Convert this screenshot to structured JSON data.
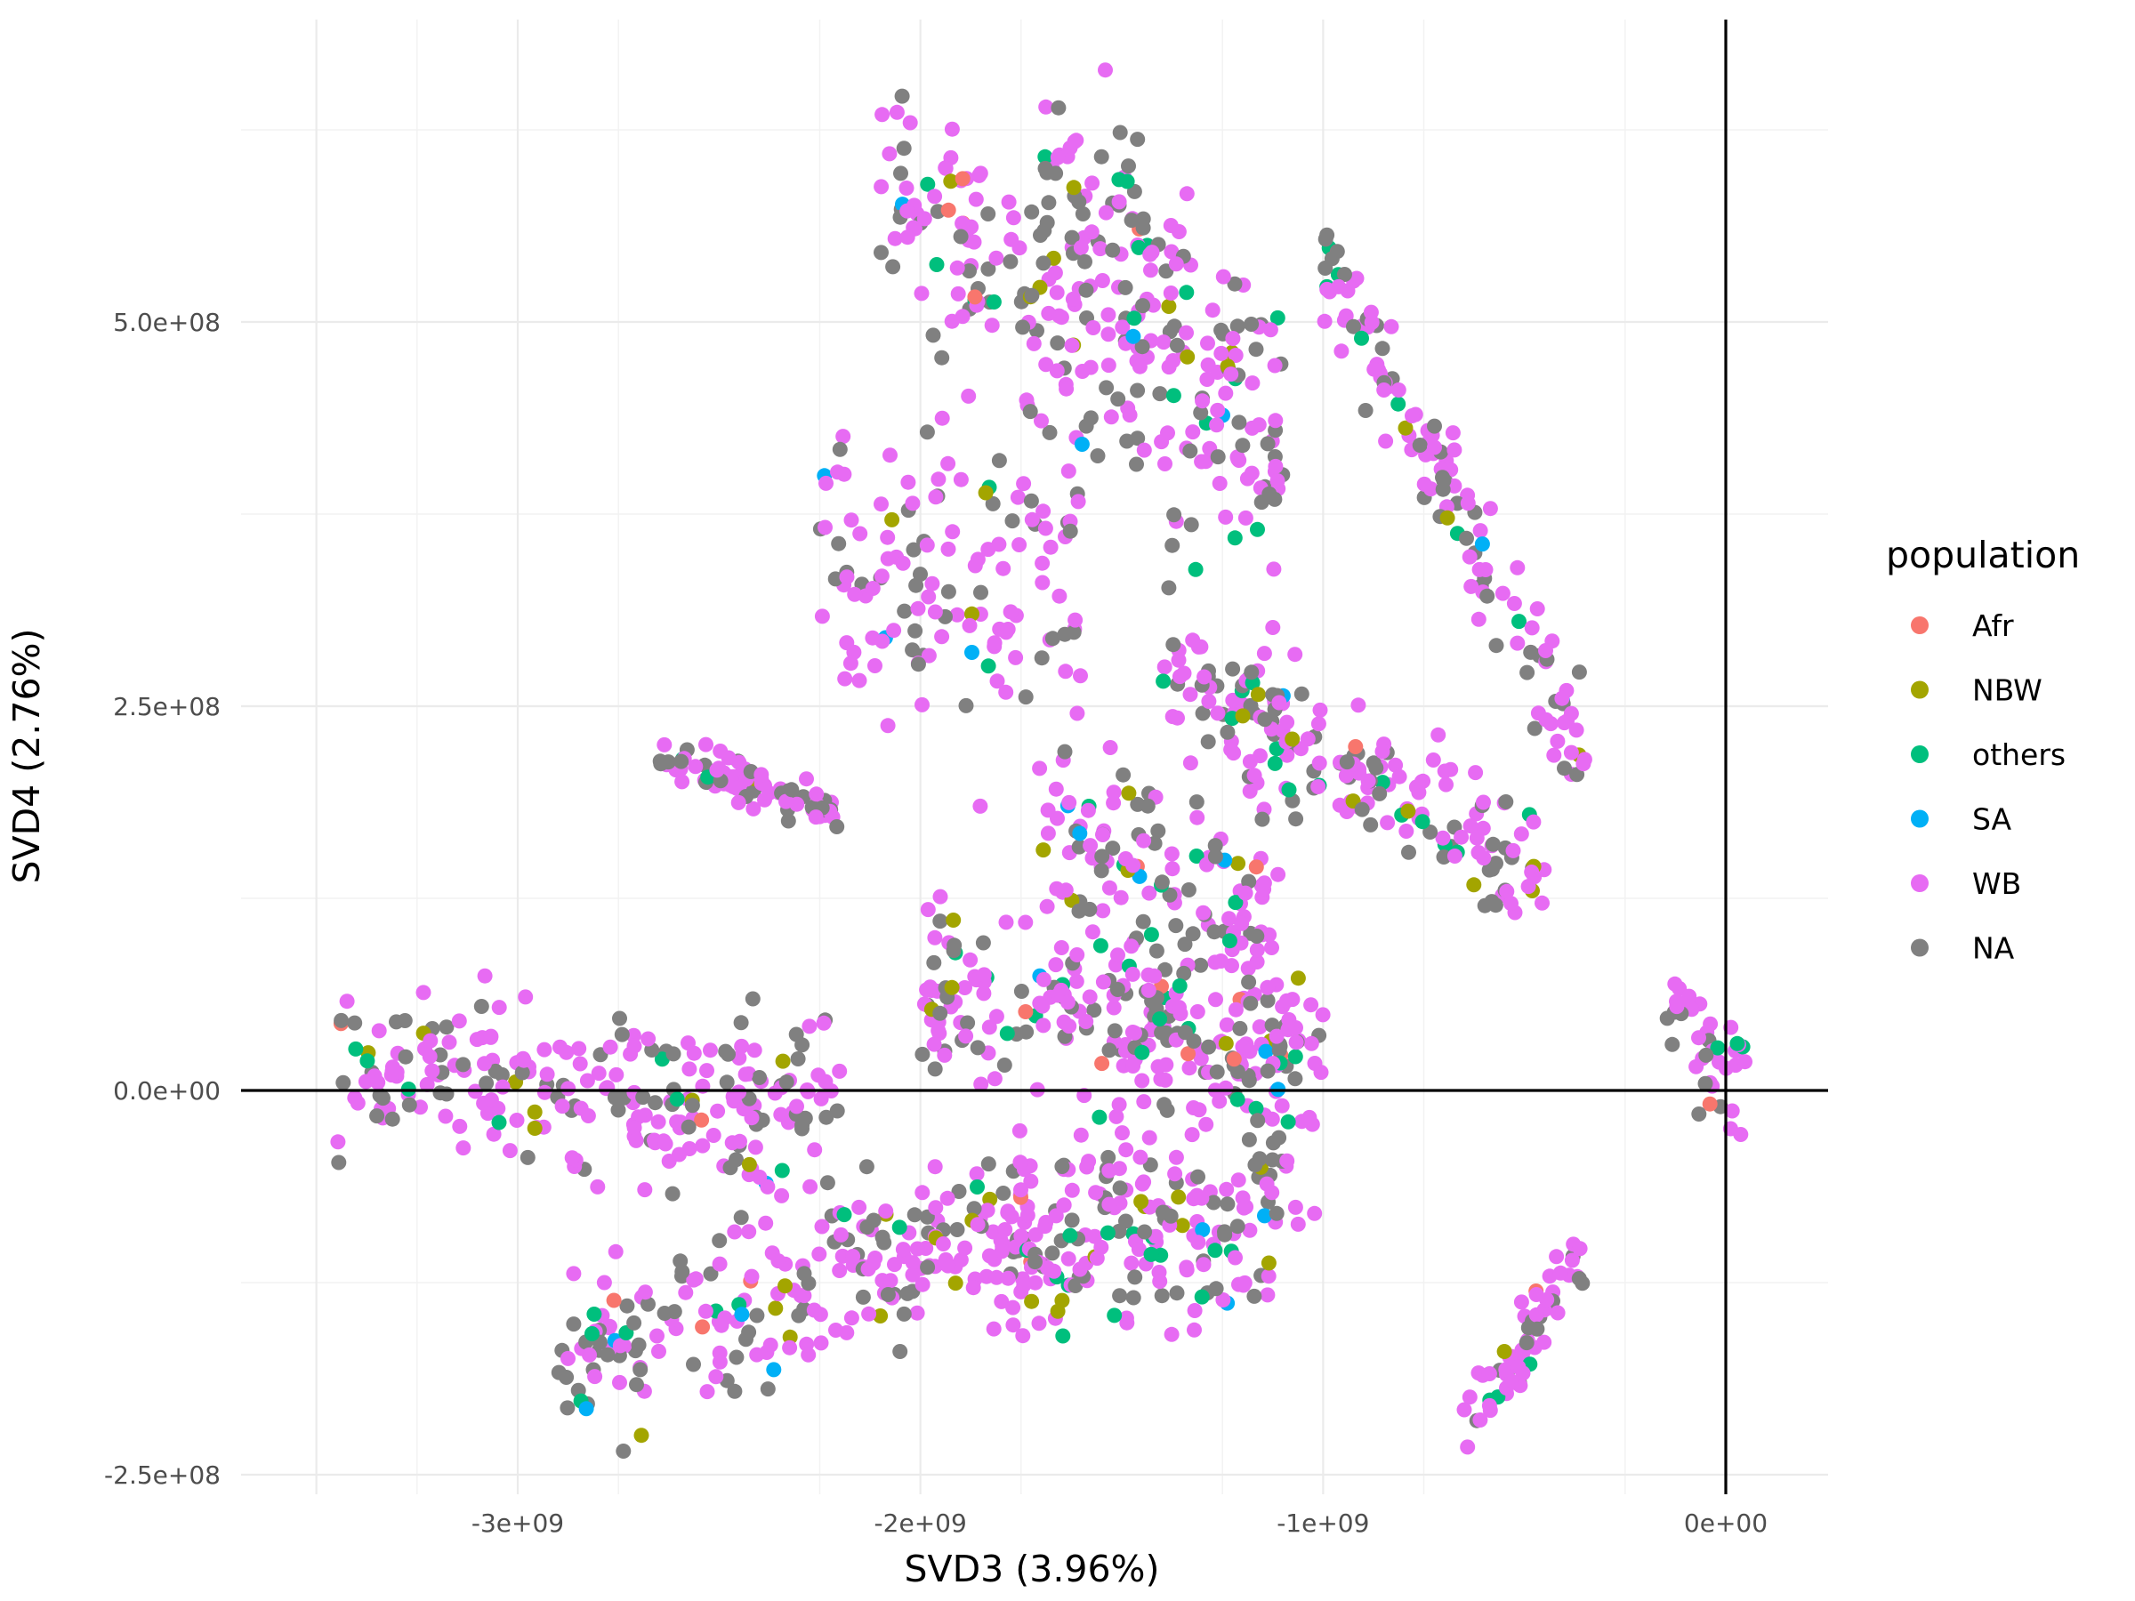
{
  "chart_data": {
    "type": "scatter",
    "title": "",
    "xlabel": "SVD3 (3.96%)",
    "ylabel": "SVD4 (2.76%)",
    "xlim": [
      -3500000000.0,
      250000000.0
    ],
    "ylim": [
      -250000000.0,
      680000000.0
    ],
    "x_ticks": [
      {
        "value": -3000000000.0,
        "label": "-3e+09"
      },
      {
        "value": -2000000000.0,
        "label": "-2e+09"
      },
      {
        "value": -1000000000.0,
        "label": "-1e+09"
      },
      {
        "value": 0,
        "label": "0e+00"
      }
    ],
    "y_ticks": [
      {
        "value": -250000000.0,
        "label": "-2.5e+08"
      },
      {
        "value": 0,
        "label": "0.0e+00"
      },
      {
        "value": 250000000.0,
        "label": "2.5e+08"
      },
      {
        "value": 500000000.0,
        "label": "5.0e+08"
      }
    ],
    "grid": true,
    "reference_lines": {
      "x": 0,
      "y": 0
    },
    "legend": {
      "title": "population",
      "position": "right",
      "entries": [
        {
          "label": "Afr",
          "color": "#F8766D"
        },
        {
          "label": "NBW",
          "color": "#A3A500"
        },
        {
          "label": "others",
          "color": "#00BF7D"
        },
        {
          "label": "SA",
          "color": "#00B0F6"
        },
        {
          "label": "WB",
          "color": "#E76BF3"
        },
        {
          "label": "NA",
          "color": "#808080"
        }
      ]
    },
    "point_clusters": [
      {
        "x_range": [
          -3450000000.0,
          -2200000000.0
        ],
        "y_center": 0.0,
        "y_spread": 40000000.0,
        "slope": -0.02
      },
      {
        "x_range": [
          -2900000000.0,
          -1700000000.0
        ],
        "y_center": -130000000.0,
        "y_spread": 40000000.0,
        "slope": 0.08
      },
      {
        "x_range": [
          -1800000000.0,
          -1100000000.0
        ],
        "y_center": -100000000.0,
        "y_spread": 40000000.0,
        "slope": 0.05
      },
      {
        "x_range": [
          -1650000000.0,
          -1000000000.0
        ],
        "y_center": 0.0,
        "y_spread": 80000000.0,
        "slope": 0.0
      },
      {
        "x_range": [
          -2000000000.0,
          -1050000000.0
        ],
        "y_center": 50000000.0,
        "y_spread": 40000000.0,
        "slope": -0.04
      },
      {
        "x_range": [
          -1700000000.0,
          -1100000000.0
        ],
        "y_center": 140000000.0,
        "y_spread": 50000000.0,
        "slope": -0.05
      },
      {
        "x_range": [
          -2250000000.0,
          -1600000000.0
        ],
        "y_center": 340000000.0,
        "y_spread": 70000000.0,
        "slope": -0.1
      },
      {
        "x_range": [
          -2100000000.0,
          -1100000000.0
        ],
        "y_center": 480000000.0,
        "y_spread": 60000000.0,
        "slope": -0.2
      },
      {
        "x_range": [
          -1700000000.0,
          -1100000000.0
        ],
        "y_center": 530000000.0,
        "y_spread": 50000000.0,
        "slope": -0.25
      },
      {
        "x_range": [
          -1000000000.0,
          -350000000.0
        ],
        "y_center": 380000000.0,
        "y_spread": 30000000.0,
        "slope": -0.5
      },
      {
        "x_range": [
          -1400000000.0,
          -450000000.0
        ],
        "y_center": 210000000.0,
        "y_spread": 30000000.0,
        "slope": -0.15
      },
      {
        "x_range": [
          -2650000000.0,
          -2200000000.0
        ],
        "y_center": 200000000.0,
        "y_spread": 10000000.0,
        "slope": -0.08
      },
      {
        "x_range": [
          -650000000.0,
          -350000000.0
        ],
        "y_center": -165000000.0,
        "y_spread": 20000000.0,
        "slope": 0.4
      },
      {
        "x_range": [
          -150000000.0,
          50000000.0
        ],
        "y_center": 30000000.0,
        "y_spread": 30000000.0,
        "slope": -0.3
      }
    ]
  }
}
